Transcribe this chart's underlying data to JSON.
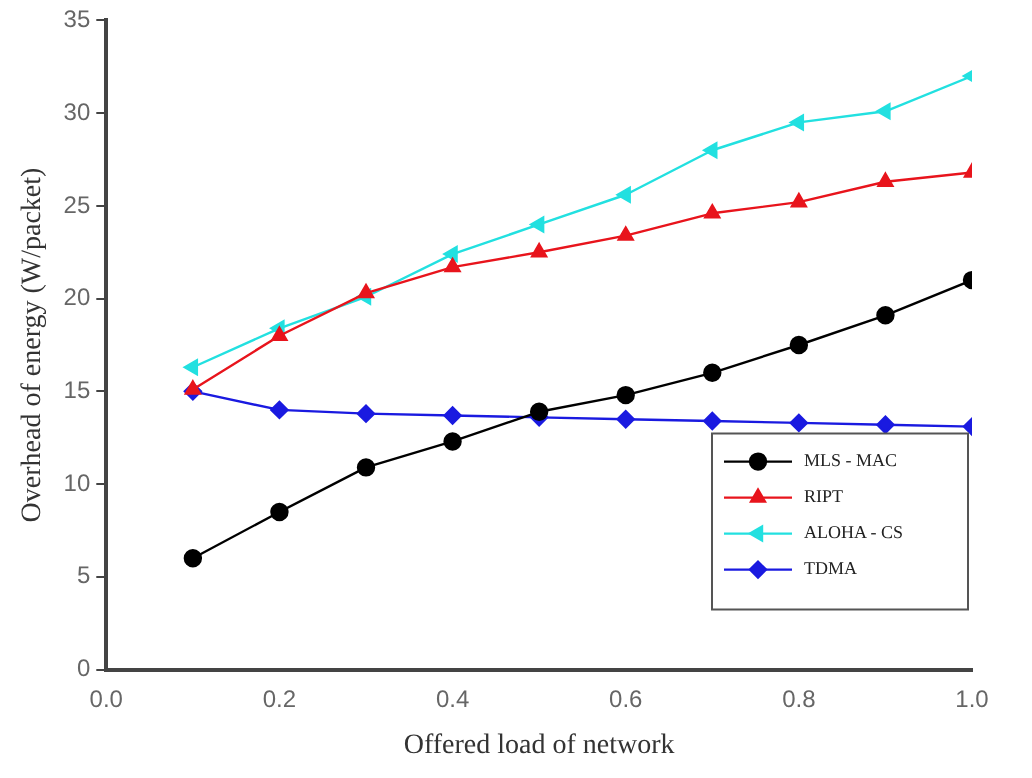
{
  "chart_data": {
    "type": "line",
    "xlabel": "Offered load of network",
    "ylabel": "Overhead of energy (W/packet)",
    "x": [
      0.1,
      0.2,
      0.3,
      0.4,
      0.5,
      0.6,
      0.7,
      0.8,
      0.9,
      1.0
    ],
    "xlim": [
      0,
      1
    ],
    "xticks": [
      {
        "value": 0,
        "label": "0.0"
      },
      0.2,
      0.4,
      0.6,
      0.8,
      {
        "value": 1,
        "label": "1.0"
      }
    ],
    "ylim": [
      0,
      35
    ],
    "yticks": [
      0,
      5,
      10,
      15,
      20,
      25,
      30,
      35
    ],
    "legend": "bottom right",
    "grid": false,
    "series": [
      {
        "name": "MLS - MAC",
        "color": "#000000",
        "marker": "circle",
        "values": [
          6,
          8.5,
          10.9,
          12.3,
          13.9,
          14.8,
          16,
          17.5,
          19.1,
          21
        ]
      },
      {
        "name": "RIPT",
        "color": "#e8141c",
        "marker": "triangle",
        "values": [
          15.1,
          18,
          20.3,
          21.7,
          22.5,
          23.4,
          24.6,
          25.2,
          26.3,
          26.8
        ]
      },
      {
        "name": "ALOHA - CS",
        "color": "#22e0e0",
        "marker": "triangle-left",
        "values": [
          16.3,
          18.4,
          20.1,
          22.4,
          24,
          25.6,
          28,
          29.5,
          30.1,
          32
        ]
      },
      {
        "name": "TDMA",
        "color": "#1a1ae0",
        "marker": "diamond",
        "values": [
          15,
          14,
          13.8,
          13.7,
          13.6,
          13.5,
          13.4,
          13.3,
          13.2,
          13.1
        ]
      }
    ]
  }
}
